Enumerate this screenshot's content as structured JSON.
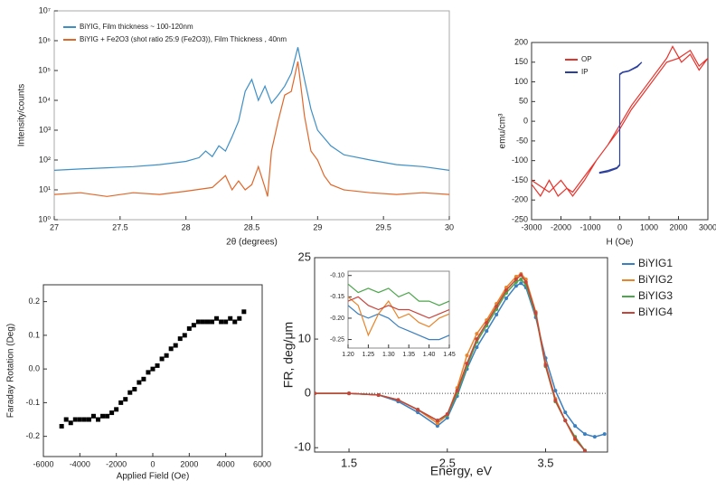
{
  "chart_data": [
    {
      "type": "line",
      "ylog": true,
      "xlabel": "2θ (degrees)",
      "ylabel": "Intensity/counts",
      "legend": "upper left",
      "xlim": [
        27,
        30
      ],
      "xticks": [
        27,
        27.5,
        28,
        28.5,
        29,
        29.5,
        30
      ],
      "ylim": [
        1,
        10000000
      ],
      "yticks": [
        {
          "value": 1,
          "label": "10⁰"
        },
        {
          "value": 10,
          "label": "10¹"
        },
        {
          "value": 100,
          "label": "10²"
        },
        {
          "value": 1000,
          "label": "10³"
        },
        {
          "value": 10000,
          "label": "10⁴"
        },
        {
          "value": 100000,
          "label": "10⁵"
        },
        {
          "value": 1000000,
          "label": "10⁶"
        },
        {
          "value": 10000000,
          "label": "10⁷"
        }
      ],
      "series": [
        {
          "name": "BiYIG, Film thickness ~ 100-120nm",
          "color": "#3d8fc6",
          "x": [
            27,
            27.2,
            27.4,
            27.6,
            27.8,
            28.0,
            28.1,
            28.15,
            28.2,
            28.25,
            28.3,
            28.35,
            28.4,
            28.45,
            28.5,
            28.55,
            28.6,
            28.65,
            28.7,
            28.75,
            28.8,
            28.85,
            28.9,
            28.95,
            29.0,
            29.1,
            29.2,
            29.4,
            29.6,
            29.8,
            30
          ],
          "values": [
            45,
            50,
            55,
            60,
            70,
            90,
            120,
            200,
            130,
            300,
            200,
            600,
            2000,
            20000,
            50000,
            10000,
            30000,
            8000,
            15000,
            30000,
            80000,
            600000,
            50000,
            5000,
            1000,
            300,
            150,
            100,
            70,
            60,
            45
          ]
        },
        {
          "name": "BiYIG + Fe2O3 (shot ratio 25:9 (Fe2O3)), Film Thickness , 40nm",
          "color": "#e0672a",
          "x": [
            27,
            27.2,
            27.4,
            27.6,
            27.8,
            28.0,
            28.2,
            28.3,
            28.35,
            28.4,
            28.45,
            28.5,
            28.55,
            28.6,
            28.62,
            28.65,
            28.7,
            28.75,
            28.8,
            28.85,
            28.9,
            28.95,
            29.0,
            29.05,
            29.1,
            29.2,
            29.4,
            29.6,
            29.8,
            30
          ],
          "values": [
            7,
            8,
            6,
            8,
            7,
            9,
            12,
            30,
            10,
            20,
            10,
            15,
            60,
            12,
            6,
            200,
            2000,
            15000,
            20000,
            200000,
            3000,
            200,
            100,
            30,
            15,
            10,
            8,
            7,
            8,
            7
          ]
        }
      ]
    },
    {
      "type": "line",
      "xlabel": "H (Oe)",
      "ylabel": "emu/cm³",
      "legend": "upper left",
      "xlim": [
        -3000,
        3000
      ],
      "xticks": [
        -3000,
        -2000,
        -1000,
        0,
        1000,
        2000,
        3000
      ],
      "ylim": [
        -250,
        200
      ],
      "yticks": [
        -250,
        -200,
        -150,
        -100,
        -50,
        0,
        50,
        100,
        150,
        200
      ],
      "series": [
        {
          "name": "OP",
          "color": "#e8312a",
          "x": [
            -3000,
            -2700,
            -2400,
            -2100,
            -1800,
            -1600,
            -1200,
            -800,
            -400,
            0,
            400,
            800,
            1200,
            1600,
            1800,
            2100,
            2400,
            2700,
            3000,
            2700,
            2400,
            2000,
            1600,
            1200,
            800,
            400,
            0,
            -400,
            -800,
            -1200,
            -1600,
            -2000,
            -2400,
            -3000
          ],
          "values": [
            -160,
            -190,
            -150,
            -190,
            -170,
            -180,
            -140,
            -100,
            -60,
            -10,
            40,
            80,
            120,
            160,
            190,
            150,
            170,
            130,
            160,
            140,
            180,
            160,
            150,
            110,
            70,
            30,
            -20,
            -60,
            -100,
            -150,
            -190,
            -150,
            -180,
            -150
          ]
        },
        {
          "name": "IP",
          "color": "#2b3f9e",
          "x": [
            -700,
            -400,
            -100,
            0,
            0,
            100,
            300,
            600,
            750,
            600,
            300,
            100,
            0,
            0,
            -100,
            -400,
            -700
          ],
          "values": [
            -130,
            -125,
            -118,
            -110,
            120,
            125,
            128,
            140,
            150,
            138,
            127,
            124,
            118,
            -112,
            -120,
            -128,
            -132
          ]
        }
      ]
    },
    {
      "type": "scatter",
      "xlabel": "Applied Field (Oe)",
      "ylabel": "Faraday Rotation (Deg)",
      "xlim": [
        -6000,
        6000
      ],
      "xticks": [
        -6000,
        -4000,
        -2000,
        0,
        2000,
        4000,
        6000
      ],
      "ylim": [
        -0.26,
        0.25
      ],
      "yticks": [
        -0.2,
        -0.1,
        {
          "value": 0,
          "label": "0.0"
        },
        0.1,
        0.2
      ],
      "series": [
        {
          "color": "#000000",
          "x": [
            -5000,
            -4750,
            -4500,
            -4250,
            -4000,
            -3750,
            -3500,
            -3250,
            -3000,
            -2750,
            -2500,
            -2250,
            -2000,
            -1750,
            -1500,
            -1250,
            -1000,
            -750,
            -500,
            -250,
            0,
            250,
            500,
            750,
            1000,
            1250,
            1500,
            1750,
            2000,
            2250,
            2500,
            2750,
            3000,
            3250,
            3500,
            3750,
            4000,
            4250,
            4500,
            4750,
            5000
          ],
          "values": [
            -0.17,
            -0.15,
            -0.16,
            -0.15,
            -0.15,
            -0.15,
            -0.15,
            -0.14,
            -0.15,
            -0.14,
            -0.14,
            -0.13,
            -0.12,
            -0.1,
            -0.09,
            -0.07,
            -0.06,
            -0.04,
            -0.03,
            -0.01,
            0,
            0.01,
            0.03,
            0.04,
            0.06,
            0.07,
            0.09,
            0.1,
            0.12,
            0.13,
            0.14,
            0.14,
            0.14,
            0.14,
            0.15,
            0.14,
            0.14,
            0.15,
            0.14,
            0.15,
            0.17
          ]
        }
      ]
    },
    {
      "type": "line",
      "xlabel": "Energy, eV",
      "ylabel": "FR, deg/μm",
      "legend": "upper right",
      "zero_line": true,
      "markers": true,
      "xlim": [
        1.15,
        4.13
      ],
      "xticks": [
        1.5,
        2.5,
        3.5
      ],
      "ylim": [
        -10.8,
        25
      ],
      "yticks": [
        -10,
        0,
        10,
        25
      ],
      "x": [
        1.15,
        1.5,
        1.8,
        2.0,
        2.2,
        2.4,
        2.5,
        2.6,
        2.7,
        2.8,
        2.9,
        3.0,
        3.1,
        3.2,
        3.25,
        3.3,
        3.4,
        3.5,
        3.6,
        3.7,
        3.8,
        3.9,
        4.0,
        4.1
      ],
      "series": [
        {
          "name": "BiYIG1",
          "color": "#3a7fc0",
          "values": [
            0,
            0,
            -0.3,
            -1.5,
            -3.5,
            -6,
            -4.5,
            -0.5,
            4.5,
            8.5,
            11.5,
            14.5,
            17.5,
            19.8,
            20.3,
            19.5,
            14,
            6.5,
            0.5,
            -3.5,
            -6,
            -7.5,
            -8,
            -7.5
          ]
        },
        {
          "name": "BiYIG2",
          "color": "#e8842a",
          "values": [
            0,
            0,
            -0.3,
            -1.2,
            -3,
            -5.5,
            -4,
            1,
            7,
            11,
            13.5,
            16.5,
            19.5,
            21.5,
            22,
            21,
            15,
            5.5,
            -1,
            -5,
            -8.5,
            -10.5,
            null,
            null
          ]
        },
        {
          "name": "BiYIG3",
          "color": "#4ca64c",
          "values": [
            0,
            0,
            -0.3,
            -1.2,
            -3,
            -5,
            -4,
            0,
            5,
            9.5,
            12.5,
            15.5,
            18.5,
            20.5,
            21,
            20,
            14.5,
            5,
            -1.5,
            -5,
            -8,
            -10.5,
            null,
            null
          ]
        },
        {
          "name": "BiYIG4",
          "color": "#c8433a",
          "values": [
            0,
            0,
            -0.3,
            -1.2,
            -3,
            -5,
            -3.8,
            0.5,
            5.5,
            10,
            13,
            16,
            19,
            21,
            21.8,
            20.5,
            14.8,
            5.2,
            -1.3,
            -5,
            -8.3,
            -10.6,
            null,
            null
          ]
        }
      ]
    },
    {
      "type": "line",
      "xlim": [
        1.2,
        1.45
      ],
      "xticks": [
        {
          "value": 1.2,
          "label": "1.20"
        },
        {
          "value": 1.25,
          "label": "1.25"
        },
        {
          "value": 1.3,
          "label": "1.30"
        },
        {
          "value": 1.35,
          "label": "1.35"
        },
        {
          "value": 1.4,
          "label": "1.40"
        },
        {
          "value": 1.45,
          "label": "1.45"
        }
      ],
      "ylim": [
        -0.27,
        -0.09
      ],
      "yticks": [
        {
          "value": -0.1,
          "label": "-0.10"
        },
        {
          "value": -0.15,
          "label": "-0.15"
        },
        {
          "value": -0.2,
          "label": "-0.20"
        },
        {
          "value": -0.25,
          "label": "-0.25"
        }
      ],
      "x": [
        1.2,
        1.225,
        1.25,
        1.275,
        1.3,
        1.325,
        1.35,
        1.375,
        1.4,
        1.425,
        1.45
      ],
      "series": [
        {
          "color": "#3a7fc0",
          "values": [
            -0.17,
            -0.19,
            -0.2,
            -0.19,
            -0.2,
            -0.22,
            -0.23,
            -0.24,
            -0.25,
            -0.25,
            -0.24
          ]
        },
        {
          "color": "#e8842a",
          "values": [
            -0.15,
            -0.17,
            -0.24,
            -0.19,
            -0.16,
            -0.2,
            -0.19,
            -0.21,
            -0.22,
            -0.2,
            -0.19
          ]
        },
        {
          "color": "#4ca64c",
          "values": [
            -0.12,
            -0.14,
            -0.13,
            -0.14,
            -0.13,
            -0.15,
            -0.14,
            -0.16,
            -0.16,
            -0.17,
            -0.16
          ]
        },
        {
          "color": "#c8433a",
          "values": [
            -0.16,
            -0.15,
            -0.17,
            -0.18,
            -0.17,
            -0.18,
            -0.18,
            -0.19,
            -0.2,
            -0.19,
            -0.18
          ]
        }
      ]
    }
  ]
}
